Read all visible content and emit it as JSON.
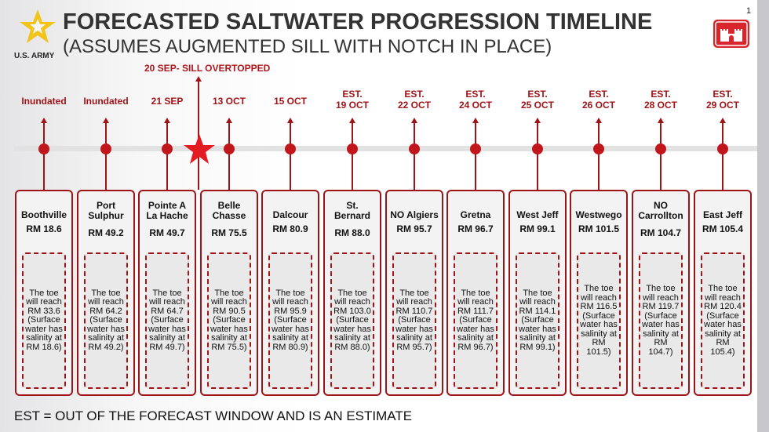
{
  "header": {
    "title": "FORECASTED SALTWATER PROGRESSION TIMELINE",
    "subtitle": "(ASSUMES AUGMENTED SILL WITH NOTCH IN PLACE)",
    "army_logo_text": "U.S. ARMY",
    "page_number": "1"
  },
  "event": {
    "label": "20 SEP- SILL OVERTOPPED",
    "icon": "star-icon",
    "color": "#e31b23"
  },
  "accent_color": "#a01418",
  "locations": [
    {
      "date": [
        "Inundated"
      ],
      "name": [
        "Boothville"
      ],
      "rm": "RM 18.6",
      "desc": [
        "The toe",
        "will reach",
        "RM 33.6",
        "(Surface",
        "water has",
        "salinity at",
        "RM 18.6)"
      ]
    },
    {
      "date": [
        "Inundated"
      ],
      "name": [
        "Port",
        "Sulphur"
      ],
      "rm": "RM 49.2",
      "desc": [
        "The toe",
        "will reach",
        "RM 64.2",
        "(Surface",
        "water has",
        "salinity at",
        "RM 49.2)"
      ]
    },
    {
      "date": [
        "21 SEP"
      ],
      "name": [
        "Pointe A",
        "La Hache"
      ],
      "rm": "RM 49.7",
      "desc": [
        "The toe",
        "will reach",
        "RM 64.7",
        "(Surface",
        "water has",
        "salinity at",
        "RM 49.7)"
      ]
    },
    {
      "date": [
        "13 OCT"
      ],
      "name": [
        "Belle",
        "Chasse"
      ],
      "rm": "RM 75.5",
      "desc": [
        "The toe",
        "will reach",
        "RM 90.5",
        "(Surface",
        "water has",
        "salinity at",
        "RM 75.5)"
      ]
    },
    {
      "date": [
        "15 OCT"
      ],
      "name": [
        "Dalcour"
      ],
      "rm": "RM 80.9",
      "desc": [
        "The toe",
        "will reach",
        "RM 95.9",
        "(Surface",
        "water has",
        "salinity at",
        "RM 80.9)"
      ]
    },
    {
      "date": [
        "EST.",
        "19 OCT"
      ],
      "name": [
        "St.",
        "Bernard"
      ],
      "rm": "RM 88.0",
      "desc": [
        "The toe",
        "will reach",
        "RM 103.0",
        "(Surface",
        "water has",
        "salinity at",
        "RM 88.0)"
      ]
    },
    {
      "date": [
        "EST.",
        "22 OCT"
      ],
      "name": [
        "NO Algiers"
      ],
      "rm": "RM 95.7",
      "desc": [
        "The toe",
        "will reach",
        "RM 110.7",
        "(Surface",
        "water has",
        "salinity at",
        "RM 95.7)"
      ]
    },
    {
      "date": [
        "EST.",
        "24 OCT"
      ],
      "name": [
        "Gretna"
      ],
      "rm": "RM 96.7",
      "desc": [
        "The toe",
        "will reach",
        "RM 111.7",
        "(Surface",
        "water has",
        "salinity at",
        "RM 96.7)"
      ]
    },
    {
      "date": [
        "EST.",
        "25 OCT"
      ],
      "name": [
        "West Jeff"
      ],
      "rm": "RM 99.1",
      "desc": [
        "The toe",
        "will reach",
        "RM 114.1",
        "(Surface",
        "water has",
        "salinity at",
        "RM 99.1)"
      ]
    },
    {
      "date": [
        "EST.",
        "26 OCT"
      ],
      "name": [
        "Westwego"
      ],
      "rm": "RM 101.5",
      "desc": [
        "The toe",
        "will reach",
        "RM 116.5",
        "(Surface",
        "water has",
        "salinity at",
        "RM",
        "101.5)"
      ]
    },
    {
      "date": [
        "EST.",
        "28 OCT"
      ],
      "name": [
        "NO",
        "Carrollton"
      ],
      "rm": "RM 104.7",
      "desc": [
        "The toe",
        "will reach",
        "RM 119.7",
        "(Surface",
        "water has",
        "salinity at",
        "RM",
        "104.7)"
      ]
    },
    {
      "date": [
        "EST.",
        "29 OCT"
      ],
      "name": [
        "East Jeff"
      ],
      "rm": "RM 105.4",
      "desc": [
        "The toe",
        "will reach",
        "RM 120.4",
        "(Surface",
        "water has",
        "salinity at",
        "RM",
        "105.4)"
      ]
    }
  ],
  "footer": "EST = OUT OF THE FORECAST WINDOW AND IS AN ESTIMATE"
}
